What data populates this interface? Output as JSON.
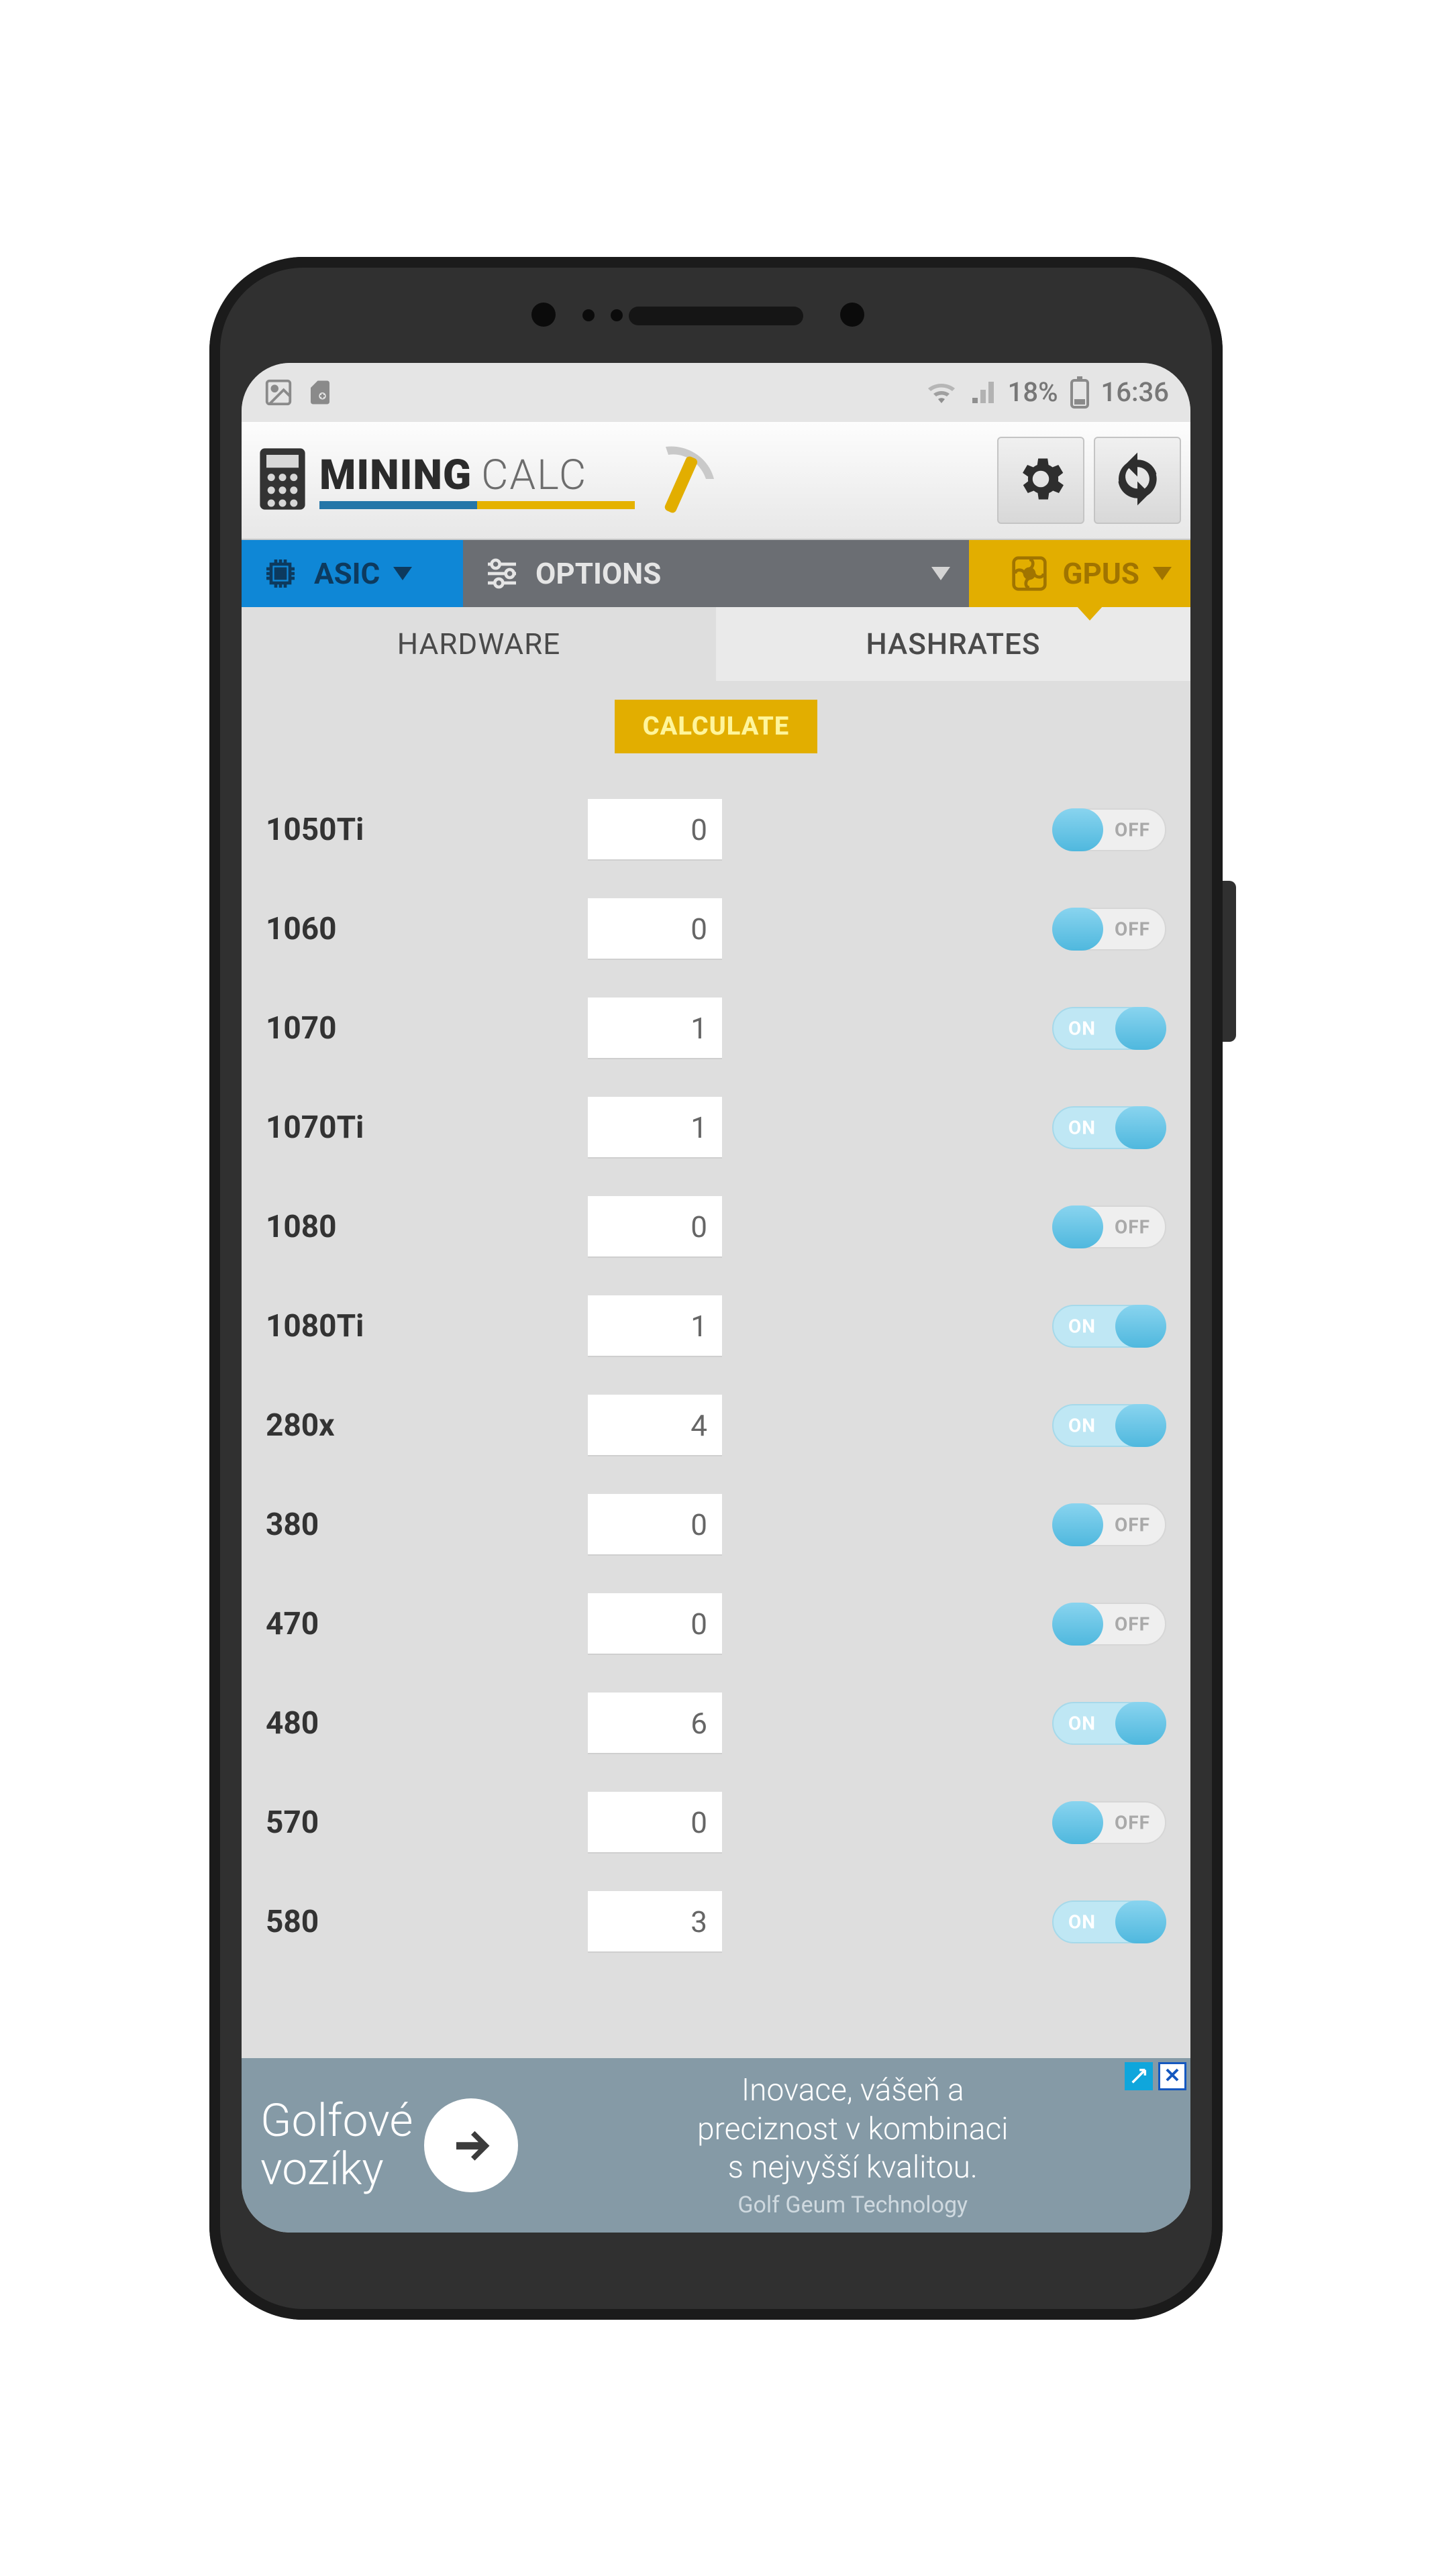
{
  "status": {
    "battery_pct": "18%",
    "time": "16:36"
  },
  "header": {
    "brand_bold": "MINING",
    "brand_light": "CALC"
  },
  "nav": {
    "asic": "ASIC",
    "options": "OPTIONS",
    "gpus": "GPUS"
  },
  "subtabs": {
    "hardware": "HARDWARE",
    "hashrates": "HASHRATES",
    "active": "hashrates"
  },
  "calculate_label": "CALCULATE",
  "toggle_labels": {
    "on": "ON",
    "off": "OFF"
  },
  "colors": {
    "asic_bg": "#0f87d6",
    "options_bg": "#6b6e73",
    "gpus_bg": "#e2ae00",
    "screen_bg": "#dedede",
    "toggle_on_track": "#bfe7f4",
    "toggle_knob": "#5cc0e3",
    "ad_bg": "#859aa6"
  },
  "hardware": [
    {
      "name": "1050Ti",
      "value": "0",
      "on": false
    },
    {
      "name": "1060",
      "value": "0",
      "on": false
    },
    {
      "name": "1070",
      "value": "1",
      "on": true
    },
    {
      "name": "1070Ti",
      "value": "1",
      "on": true
    },
    {
      "name": "1080",
      "value": "0",
      "on": false
    },
    {
      "name": "1080Ti",
      "value": "1",
      "on": true
    },
    {
      "name": "280x",
      "value": "4",
      "on": true
    },
    {
      "name": "380",
      "value": "0",
      "on": false
    },
    {
      "name": "470",
      "value": "0",
      "on": false
    },
    {
      "name": "480",
      "value": "6",
      "on": true
    },
    {
      "name": "570",
      "value": "0",
      "on": false
    },
    {
      "name": "580",
      "value": "3",
      "on": true
    }
  ],
  "ad": {
    "title_l1": "Golfové",
    "title_l2": "vozíky",
    "copy_l1": "Inovace, vášeň a",
    "copy_l2": "preciznost v kombinaci",
    "copy_l3": "s nejvyšší kvalitou.",
    "brand": "Golf Geum Technology"
  }
}
